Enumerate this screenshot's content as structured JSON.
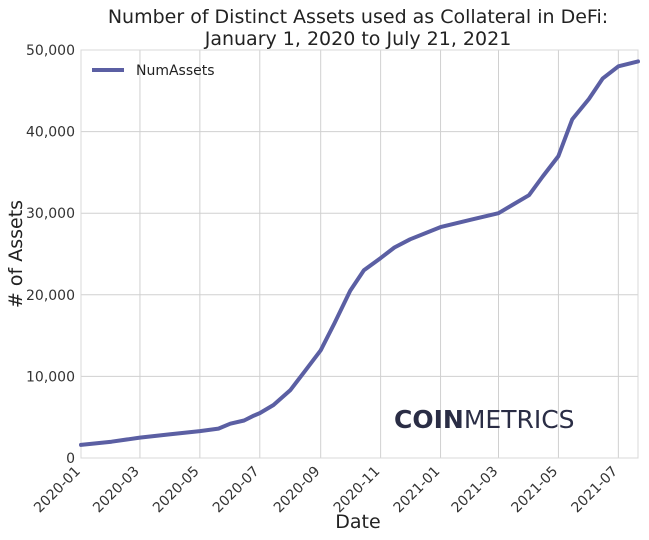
{
  "brand": {
    "logo_part1": "COIN",
    "logo_part2": "METRICS"
  },
  "chart_data": {
    "type": "line",
    "title_line1": "Number of Distinct Assets used as Collateral in DeFi:",
    "title_line2": "January 1, 2020 to July 21, 2021",
    "xlabel": "Date",
    "ylabel": "# of Assets",
    "x_range": [
      "2020-01-01",
      "2021-07-21"
    ],
    "ylim": [
      0,
      50000
    ],
    "y_ticks": [
      0,
      10000,
      20000,
      30000,
      40000,
      50000
    ],
    "y_tick_labels": [
      "0",
      "10,000",
      "20,000",
      "30,000",
      "40,000",
      "50,000"
    ],
    "x_ticks": [
      "2020-01-01",
      "2020-03-01",
      "2020-05-01",
      "2020-07-01",
      "2020-09-01",
      "2020-11-01",
      "2021-01-01",
      "2021-03-01",
      "2021-05-01",
      "2021-07-01"
    ],
    "x_tick_labels": [
      "2020-01",
      "2020-03",
      "2020-05",
      "2020-07",
      "2020-09",
      "2020-11",
      "2021-01",
      "2021-03",
      "2021-05",
      "2021-07"
    ],
    "grid": true,
    "legend_position": "top-left",
    "series": [
      {
        "name": "NumAssets",
        "color": "#5b5fa3",
        "points": [
          {
            "x": "2020-01-01",
            "y": 1600
          },
          {
            "x": "2020-02-01",
            "y": 2000
          },
          {
            "x": "2020-03-01",
            "y": 2500
          },
          {
            "x": "2020-04-01",
            "y": 2900
          },
          {
            "x": "2020-05-01",
            "y": 3300
          },
          {
            "x": "2020-05-20",
            "y": 3600
          },
          {
            "x": "2020-06-01",
            "y": 4200
          },
          {
            "x": "2020-06-15",
            "y": 4600
          },
          {
            "x": "2020-06-25",
            "y": 5200
          },
          {
            "x": "2020-07-01",
            "y": 5500
          },
          {
            "x": "2020-07-15",
            "y": 6500
          },
          {
            "x": "2020-08-01",
            "y": 8300
          },
          {
            "x": "2020-08-15",
            "y": 10500
          },
          {
            "x": "2020-09-01",
            "y": 13200
          },
          {
            "x": "2020-09-15",
            "y": 16500
          },
          {
            "x": "2020-10-01",
            "y": 20500
          },
          {
            "x": "2020-10-15",
            "y": 23000
          },
          {
            "x": "2020-11-01",
            "y": 24500
          },
          {
            "x": "2020-11-15",
            "y": 25800
          },
          {
            "x": "2020-12-01",
            "y": 26800
          },
          {
            "x": "2021-01-01",
            "y": 28300
          },
          {
            "x": "2021-02-01",
            "y": 29200
          },
          {
            "x": "2021-03-01",
            "y": 30000
          },
          {
            "x": "2021-03-15",
            "y": 31000
          },
          {
            "x": "2021-04-01",
            "y": 32200
          },
          {
            "x": "2021-04-15",
            "y": 34500
          },
          {
            "x": "2021-05-01",
            "y": 37000
          },
          {
            "x": "2021-05-15",
            "y": 41500
          },
          {
            "x": "2021-06-01",
            "y": 44000
          },
          {
            "x": "2021-06-15",
            "y": 46500
          },
          {
            "x": "2021-07-01",
            "y": 48000
          },
          {
            "x": "2021-07-21",
            "y": 48600
          }
        ]
      }
    ]
  }
}
